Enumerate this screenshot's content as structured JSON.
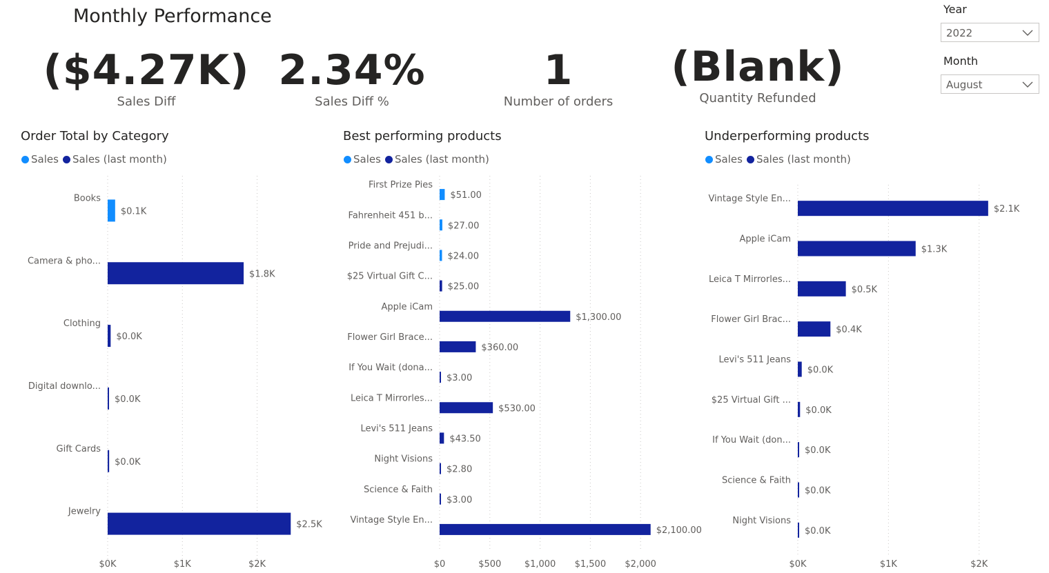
{
  "page": {
    "title": "Monthly Performance"
  },
  "kpis": [
    {
      "value": "($4.27K)",
      "label": "Sales Diff"
    },
    {
      "value": "2.34%",
      "label": "Sales Diff %"
    },
    {
      "value": "1",
      "label": "Number of orders"
    },
    {
      "value": "(Blank)",
      "label": "Quantity Refunded"
    }
  ],
  "slicers": {
    "year": {
      "title": "Year",
      "value": "2022"
    },
    "month": {
      "title": "Month",
      "value": "August"
    }
  },
  "colors": {
    "sales": "#118dff",
    "sales_last_month": "#12239e",
    "grid": "#c8c6c4",
    "text": "#605e5c"
  },
  "chart_data": [
    {
      "type": "bar",
      "orientation": "horizontal",
      "title": "Order Total by Category",
      "legend": [
        "Sales",
        "Sales (last month)"
      ],
      "legend_position": "top-left",
      "grid": true,
      "xlim": [
        0,
        2900
      ],
      "xticks": [
        0,
        1000,
        2000
      ],
      "xtick_labels": [
        "$0K",
        "$1K",
        "$2K"
      ],
      "categories": [
        "Books",
        "Camera & pho...",
        "Clothing",
        "Digital downlo...",
        "Gift Cards",
        "Jewelry"
      ],
      "series": [
        {
          "name": "Sales",
          "values": [
            100,
            0,
            0,
            0,
            0,
            0
          ]
        },
        {
          "name": "Sales (last month)",
          "values": [
            0,
            1820,
            40,
            10,
            20,
            2450
          ]
        }
      ],
      "data_labels": [
        "$0.1K",
        "$1.8K",
        "$0.0K",
        "$0.0K",
        "$0.0K",
        "$2.5K"
      ]
    },
    {
      "type": "bar",
      "orientation": "horizontal",
      "title": "Best performing products",
      "legend": [
        "Sales",
        "Sales (last month)"
      ],
      "legend_position": "top-left",
      "grid": true,
      "xlim": [
        0,
        2150
      ],
      "xticks": [
        0,
        500,
        1000,
        1500,
        2000
      ],
      "xtick_labels": [
        "$0",
        "$500",
        "$1,000",
        "$1,500",
        "$2,000"
      ],
      "categories": [
        "First Prize Pies",
        "Fahrenheit 451 b...",
        "Pride and Prejudi...",
        "$25 Virtual Gift C...",
        "Apple iCam",
        "Flower Girl Brace...",
        "If You Wait (dona...",
        "Leica T Mirrorles...",
        "Levi's 511 Jeans",
        "Night Visions",
        "Science & Faith",
        "Vintage Style En..."
      ],
      "series": [
        {
          "name": "Sales",
          "values": [
            51,
            27,
            24,
            0,
            0,
            0,
            0,
            0,
            0,
            0,
            0,
            0
          ]
        },
        {
          "name": "Sales (last month)",
          "values": [
            0,
            0,
            0,
            25,
            1300,
            360,
            3,
            530,
            43.5,
            2.8,
            3,
            2100
          ]
        }
      ],
      "data_labels": [
        "$51.00",
        "$27.00",
        "$24.00",
        "$25.00",
        "$1,300.00",
        "$360.00",
        "$3.00",
        "$530.00",
        "$43.50",
        "$2.80",
        "$3.00",
        "$2,100.00"
      ]
    },
    {
      "type": "bar",
      "orientation": "horizontal",
      "title": "Underperforming products",
      "legend": [
        "Sales",
        "Sales (last month)"
      ],
      "legend_position": "top-left",
      "grid": true,
      "xlim": [
        0,
        2200
      ],
      "xticks": [
        0,
        1000,
        2000
      ],
      "xtick_labels": [
        "$0K",
        "$1K",
        "$2K"
      ],
      "categories": [
        "Vintage Style En...",
        "Apple iCam",
        "Leica T Mirrorles...",
        "Flower Girl Brac...",
        "Levi's 511 Jeans",
        "$25 Virtual Gift ...",
        "If You Wait (don...",
        "Science & Faith",
        "Night Visions"
      ],
      "series": [
        {
          "name": "Sales",
          "values": [
            0,
            0,
            0,
            0,
            0,
            0,
            0,
            0,
            0
          ]
        },
        {
          "name": "Sales (last month)",
          "values": [
            2100,
            1300,
            530,
            360,
            43.5,
            25,
            3,
            3,
            2.8
          ]
        }
      ],
      "data_labels": [
        "$2.1K",
        "$1.3K",
        "$0.5K",
        "$0.4K",
        "$0.0K",
        "$0.0K",
        "$0.0K",
        "$0.0K",
        "$0.0K"
      ]
    }
  ]
}
